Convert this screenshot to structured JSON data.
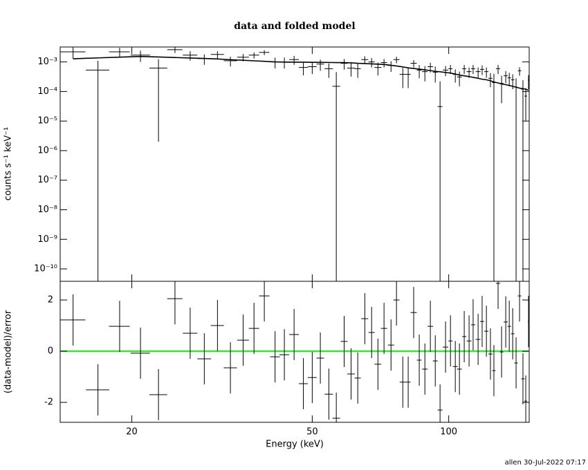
{
  "footer": "allen 30-Jul-2022 07:17",
  "chart_data": [
    {
      "type": "errorbar",
      "title": "data and folded model",
      "ylabel": "counts s⁻¹ keV⁻¹",
      "xscale": "log",
      "yscale": "log",
      "xlim": [
        13.9,
        150.5
      ],
      "ylim": [
        3.8e-11,
        0.0032
      ],
      "yticks": [
        {
          "value": 1e-10,
          "label": "10⁻¹⁰"
        },
        {
          "value": 1e-09,
          "label": "10⁻⁹"
        },
        {
          "value": 1e-08,
          "label": "10⁻⁸"
        },
        {
          "value": 1e-07,
          "label": "10⁻⁷"
        },
        {
          "value": 1e-06,
          "label": "10⁻⁶"
        },
        {
          "value": 1e-05,
          "label": "10⁻⁵"
        },
        {
          "value": 0.0001,
          "label": "10⁻⁴"
        },
        {
          "value": 0.001,
          "label": "10⁻³"
        }
      ],
      "x": [
        14.84,
        16.84,
        18.8,
        20.9,
        22.9,
        24.9,
        26.9,
        28.9,
        30.9,
        33.0,
        35.2,
        37.2,
        39.2,
        41.4,
        43.4,
        45.6,
        47.8,
        50.0,
        52.1,
        54.4,
        56.5,
        58.8,
        60.9,
        63.0,
        65.3,
        67.6,
        69.8,
        72.0,
        74.6,
        76.7,
        79.2,
        81.4,
        83.7,
        86.1,
        88.6,
        91.1,
        93.4,
        95.7,
        98.4,
        100.9,
        103.4,
        105.6,
        108.2,
        110.9,
        113.2,
        116.1,
        118.5,
        121.1,
        123.6,
        125.8,
        128.5,
        130.8,
        133.6,
        136.0,
        138.4,
        140.8,
        143.3,
        145.8,
        147.9,
        150.0
      ],
      "xerr": [
        0.96,
        1.0,
        0.99,
        1.03,
        1.04,
        0.96,
        0.99,
        1.01,
        1.03,
        1.1,
        1.05,
        0.98,
        1.03,
        1.02,
        1.07,
        1.12,
        1.09,
        1.14,
        1.0,
        1.15,
        1.09,
        1.03,
        1.18,
        1.0,
        1.15,
        1.07,
        1.22,
        1.14,
        1.18,
        1.21,
        1.25,
        1.0,
        1.32,
        1.06,
        1.24,
        1.28,
        1.15,
        1.18,
        1.38,
        1.06,
        1.27,
        1.3,
        1.14,
        1.36,
        1.19,
        1.43,
        1.25,
        1.28,
        1.3,
        1.1,
        1.35,
        1.15,
        1.41,
        1.19,
        1.21,
        1.24,
        1.26,
        1.28,
        1.04,
        0.53
      ],
      "data": {
        "color": "#000000",
        "values": [
          0.0022,
          0.00053,
          0.0022,
          0.0017,
          0.00062,
          0.0026,
          0.0017,
          0.0013,
          0.0018,
          0.0011,
          0.00145,
          0.0017,
          0.0021,
          0.001,
          0.001,
          0.0012,
          0.00065,
          0.00069,
          0.00085,
          0.00059,
          0.00015,
          0.0009,
          0.00062,
          0.00059,
          0.0012,
          0.001,
          0.00065,
          0.00095,
          0.00076,
          0.0012,
          0.00038,
          0.00038,
          0.0009,
          0.00053,
          0.00047,
          0.00069,
          0.00045,
          3.1e-05,
          0.00053,
          0.00059,
          0.00038,
          0.00031,
          0.00059,
          0.00047,
          0.00059,
          0.00047,
          0.00056,
          0.00047,
          0.00028,
          0.0002,
          0.00059,
          0.00019,
          0.00034,
          0.00029,
          0.00025,
          0.00014,
          0.0005,
          0.00012,
          7e-05,
          0.00024
        ],
        "errors": [
          0.0009,
          0.00056,
          0.0008,
          0.0007,
          0.000618,
          0.0006,
          0.0006,
          0.0005,
          0.0005,
          0.0004,
          0.0004,
          0.0004,
          0.0004,
          0.0004,
          0.0004,
          0.0004,
          0.0003,
          0.0003,
          0.00035,
          0.0003,
          0.000305,
          0.00035,
          0.0003,
          0.0003,
          0.00035,
          0.00035,
          0.0003,
          0.0003,
          0.0003,
          0.0003,
          0.00025,
          0.00025,
          0.00025,
          0.00025,
          0.00025,
          0.00025,
          0.00025,
          0.00019,
          0.0002,
          0.0002,
          0.00018,
          0.00016,
          0.0002,
          0.00018,
          0.0002,
          0.00018,
          0.0002,
          0.00018,
          0.00014,
          0.0002,
          0.0002,
          0.00015,
          0.00015,
          0.00014,
          0.00013,
          0.00014,
          0.00016,
          0.00012,
          6e-05,
          0.00012
        ]
      },
      "model": {
        "color": "#000000",
        "values": [
          0.00128,
          0.00137,
          0.00145,
          0.00153,
          0.00147,
          0.00141,
          0.00136,
          0.00131,
          0.00126,
          0.00119,
          0.00114,
          0.00109,
          0.00105,
          0.001,
          0.00099,
          0.00098,
          0.00098,
          0.00097,
          0.00097,
          0.00096,
          0.00095,
          0.00095,
          0.00093,
          0.0009,
          0.00088,
          0.00086,
          0.00084,
          0.00082,
          0.00077,
          0.00073,
          0.00068,
          0.00063,
          0.0006,
          0.00057,
          0.00054,
          0.00051,
          0.00048,
          0.000465,
          0.00044,
          0.00042,
          0.00039,
          0.00036,
          0.00034,
          0.00032,
          0.0003,
          0.00028,
          0.00026,
          0.00025,
          0.00023,
          0.00021,
          0.000195,
          0.00018,
          0.00017,
          0.00016,
          0.00015,
          0.00014,
          0.00013,
          0.000125,
          0.00012,
          0.00011
        ]
      }
    },
    {
      "type": "residual",
      "xlabel": "Energy (keV)",
      "ylabel": "(data-model)/error",
      "xscale": "log",
      "xlim": [
        13.9,
        150.5
      ],
      "xticks": [
        20,
        50,
        100
      ],
      "ylim": [
        -2.78,
        2.73
      ],
      "yticks": [
        -2,
        0,
        2
      ],
      "reference_line": 0,
      "reference_color": "#00ff00",
      "color": "#000000",
      "values": [
        1.22,
        -1.51,
        0.97,
        -0.08,
        -1.7,
        2.05,
        0.7,
        -0.3,
        1.0,
        -0.65,
        0.43,
        0.89,
        2.16,
        -0.22,
        -0.14,
        0.65,
        -1.27,
        -1.03,
        -0.27,
        -1.68,
        -2.62,
        0.38,
        -0.89,
        -1.05,
        1.27,
        0.73,
        -0.51,
        0.89,
        0.24,
        2.0,
        -1.21,
        -1.21,
        1.51,
        -0.35,
        -0.7,
        0.97,
        -0.38,
        -2.3,
        0.16,
        0.4,
        -0.6,
        -0.7,
        0.57,
        0.4,
        1.03,
        0.46,
        1.16,
        0.78,
        -0.11,
        -0.76,
        2.65,
        -0.03,
        1.14,
        0.97,
        0.68,
        -0.46,
        2.16,
        -1.08,
        -1.95,
        1.16
      ],
      "errors": [
        1,
        1,
        1,
        1,
        1,
        1,
        1,
        1,
        1,
        1,
        1,
        1,
        1,
        1,
        1,
        1,
        1,
        1,
        1,
        1,
        1,
        1,
        1,
        1,
        1,
        1,
        1,
        1,
        1,
        1,
        1,
        1,
        1,
        1,
        1,
        1,
        1,
        1,
        1,
        1,
        1,
        1,
        1,
        1,
        1,
        1,
        1,
        1,
        1,
        1,
        1,
        1,
        1,
        1,
        1,
        1,
        1,
        1,
        1,
        1
      ]
    }
  ]
}
